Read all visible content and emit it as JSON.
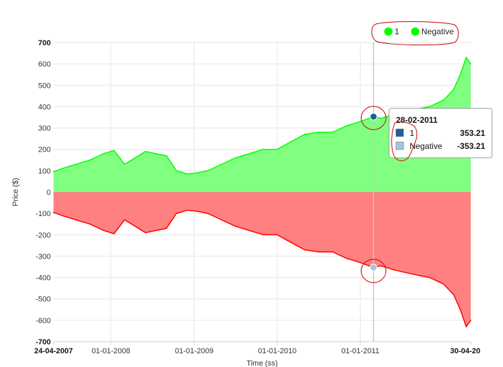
{
  "chart_data": {
    "type": "area",
    "ylabel": "Price ($)",
    "xlabel": "Time (ss)",
    "ylim": [
      -700,
      700
    ],
    "xlim": [
      "2007-04-24",
      "2012-04-30"
    ],
    "y_ticks": [
      "700",
      "600",
      "500",
      "400",
      "300",
      "200",
      "100",
      "0",
      "-100",
      "-200",
      "-300",
      "-400",
      "-500",
      "-600",
      "-700"
    ],
    "x_ticks": [
      {
        "date": "2007-04-24",
        "label": "24-04-2007",
        "bold": true
      },
      {
        "date": "2008-01-01",
        "label": "01-01-2008",
        "bold": false
      },
      {
        "date": "2009-01-01",
        "label": "01-01-2009",
        "bold": false
      },
      {
        "date": "2010-01-01",
        "label": "01-01-2010",
        "bold": false
      },
      {
        "date": "2011-01-01",
        "label": "01-01-2011",
        "bold": false
      },
      {
        "date": "2012-04-30",
        "label": "30-04-20",
        "bold": true
      }
    ],
    "grid": true,
    "legend": {
      "placement": "top-right"
    },
    "series": [
      {
        "name": "1",
        "color": "#00ff00",
        "fill": "#80ff80",
        "x": [
          "2007-04-24",
          "2007-06-01",
          "2007-08-01",
          "2007-10-01",
          "2007-12-01",
          "2008-01-15",
          "2008-03-01",
          "2008-04-01",
          "2008-06-01",
          "2008-07-15",
          "2008-09-01",
          "2008-10-15",
          "2008-12-01",
          "2009-01-15",
          "2009-03-01",
          "2009-05-01",
          "2009-07-01",
          "2009-09-01",
          "2009-11-01",
          "2010-01-01",
          "2010-03-01",
          "2010-05-01",
          "2010-07-01",
          "2010-09-01",
          "2010-11-01",
          "2011-01-01",
          "2011-02-28",
          "2011-04-01",
          "2011-06-01",
          "2011-08-01",
          "2011-09-15",
          "2011-11-01",
          "2012-01-01",
          "2012-02-15",
          "2012-03-15",
          "2012-04-10",
          "2012-04-30"
        ],
        "values": [
          95,
          110,
          130,
          150,
          180,
          195,
          130,
          150,
          190,
          180,
          170,
          100,
          85,
          90,
          100,
          130,
          160,
          180,
          200,
          200,
          235,
          270,
          280,
          280,
          310,
          330,
          353.21,
          345,
          365,
          380,
          390,
          400,
          430,
          480,
          550,
          630,
          600
        ]
      },
      {
        "name": "Negative",
        "color": "#ff0000",
        "fill": "#ff8080",
        "x": [
          "2007-04-24",
          "2007-06-01",
          "2007-08-01",
          "2007-10-01",
          "2007-12-01",
          "2008-01-15",
          "2008-03-01",
          "2008-04-01",
          "2008-06-01",
          "2008-07-15",
          "2008-09-01",
          "2008-10-15",
          "2008-12-01",
          "2009-01-15",
          "2009-03-01",
          "2009-05-01",
          "2009-07-01",
          "2009-09-01",
          "2009-11-01",
          "2010-01-01",
          "2010-03-01",
          "2010-05-01",
          "2010-07-01",
          "2010-09-01",
          "2010-11-01",
          "2011-01-01",
          "2011-02-28",
          "2011-04-01",
          "2011-06-01",
          "2011-08-01",
          "2011-09-15",
          "2011-11-01",
          "2012-01-01",
          "2012-02-15",
          "2012-03-15",
          "2012-04-10",
          "2012-04-30"
        ],
        "values": [
          -95,
          -110,
          -130,
          -150,
          -180,
          -195,
          -130,
          -150,
          -190,
          -180,
          -170,
          -100,
          -85,
          -90,
          -100,
          -130,
          -160,
          -180,
          -200,
          -200,
          -235,
          -270,
          -280,
          -280,
          -310,
          -330,
          -353.21,
          -345,
          -365,
          -380,
          -390,
          -400,
          -430,
          -480,
          -550,
          -630,
          -600
        ]
      }
    ],
    "legend_items": [
      {
        "label": "1",
        "color": "#00ff00"
      },
      {
        "label": "Negative",
        "color": "#00ff00"
      }
    ],
    "tooltip": {
      "date": "2011-02-28",
      "title": "28-02-2011",
      "rows": [
        {
          "label": "1",
          "value": "353.21",
          "swatch": "#1f5f9a"
        },
        {
          "label": "Negative",
          "value": "-353.21",
          "swatch": "#a9c4e3"
        }
      ]
    }
  }
}
